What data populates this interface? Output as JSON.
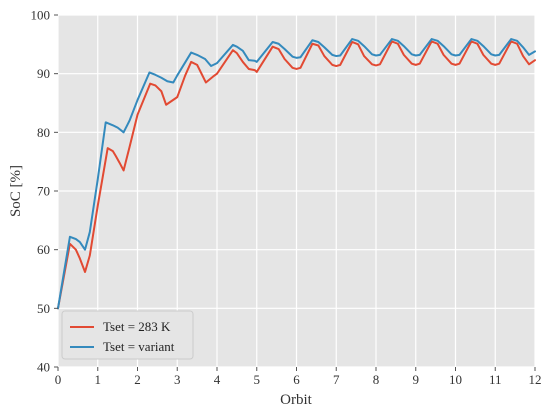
{
  "chart_data": {
    "type": "line",
    "title": "",
    "xlabel": "Orbit",
    "ylabel": "SoC [%]",
    "xlim": [
      0,
      12
    ],
    "ylim": [
      40,
      100
    ],
    "xticks": [
      0,
      1,
      2,
      3,
      4,
      5,
      6,
      7,
      8,
      9,
      10,
      11,
      12
    ],
    "yticks": [
      40,
      50,
      60,
      70,
      80,
      90,
      100
    ],
    "grid": true,
    "legend_position": "lower-left",
    "series": [
      {
        "name": "Tset = 283 K",
        "color": "#e24a33",
        "x": [
          0,
          0.3,
          0.45,
          0.55,
          0.68,
          0.8,
          1.0,
          1.25,
          1.38,
          1.45,
          1.55,
          1.65,
          1.8,
          2.0,
          2.32,
          2.45,
          2.6,
          2.72,
          3.0,
          3.2,
          3.35,
          3.5,
          3.72,
          3.9,
          4.0,
          4.4,
          4.5,
          4.65,
          4.8,
          4.95,
          5.0,
          5.4,
          5.55,
          5.7,
          5.9,
          6.0,
          6.1,
          6.4,
          6.55,
          6.7,
          6.9,
          7.0,
          7.1,
          7.4,
          7.55,
          7.7,
          7.9,
          8.0,
          8.1,
          8.4,
          8.55,
          8.7,
          8.9,
          9.0,
          9.1,
          9.4,
          9.55,
          9.7,
          9.9,
          10.0,
          10.1,
          10.4,
          10.55,
          10.7,
          10.9,
          11.0,
          11.1,
          11.4,
          11.55,
          11.7,
          11.85,
          12.0
        ],
        "y": [
          50.0,
          61.0,
          60.0,
          58.5,
          56.2,
          59.0,
          67.5,
          77.3,
          76.8,
          76.0,
          74.8,
          73.5,
          77.5,
          83.0,
          88.3,
          88.0,
          87.0,
          84.7,
          86.0,
          89.7,
          92.0,
          91.5,
          88.5,
          89.5,
          90.0,
          94.0,
          93.5,
          92.0,
          90.8,
          90.6,
          90.3,
          94.6,
          94.2,
          92.5,
          91.0,
          90.8,
          91.0,
          95.1,
          94.8,
          93.0,
          91.5,
          91.3,
          91.5,
          95.4,
          95.0,
          93.0,
          91.6,
          91.4,
          91.6,
          95.5,
          95.1,
          93.2,
          91.7,
          91.5,
          91.7,
          95.5,
          95.1,
          93.2,
          91.7,
          91.5,
          91.7,
          95.5,
          95.1,
          93.2,
          91.7,
          91.5,
          91.7,
          95.5,
          95.1,
          93.0,
          91.6,
          92.3
        ]
      },
      {
        "name": "Tset = variant",
        "color": "#348abd",
        "x": [
          0,
          0.3,
          0.45,
          0.55,
          0.68,
          0.8,
          1.0,
          1.2,
          1.38,
          1.5,
          1.65,
          1.8,
          2.0,
          2.3,
          2.45,
          2.6,
          2.75,
          2.9,
          3.0,
          3.35,
          3.5,
          3.7,
          3.85,
          4.0,
          4.4,
          4.5,
          4.65,
          4.8,
          4.95,
          5.0,
          5.4,
          5.55,
          5.7,
          5.9,
          6.0,
          6.1,
          6.4,
          6.55,
          6.7,
          6.9,
          7.0,
          7.1,
          7.4,
          7.55,
          7.7,
          7.9,
          8.0,
          8.1,
          8.4,
          8.55,
          8.7,
          8.9,
          9.0,
          9.1,
          9.4,
          9.55,
          9.7,
          9.9,
          10.0,
          10.1,
          10.4,
          10.55,
          10.7,
          10.9,
          11.0,
          11.1,
          11.4,
          11.55,
          11.7,
          11.85,
          12.0
        ],
        "y": [
          50.0,
          62.2,
          61.8,
          61.3,
          60.0,
          63.0,
          72.0,
          81.7,
          81.2,
          80.8,
          80.0,
          82.0,
          85.5,
          90.2,
          89.8,
          89.3,
          88.7,
          88.5,
          89.7,
          93.6,
          93.2,
          92.5,
          91.3,
          91.8,
          94.9,
          94.6,
          93.9,
          92.3,
          92.2,
          92.0,
          95.4,
          95.1,
          94.2,
          92.9,
          92.7,
          92.8,
          95.7,
          95.4,
          94.5,
          93.2,
          93.0,
          93.1,
          95.9,
          95.6,
          94.7,
          93.3,
          93.1,
          93.2,
          95.9,
          95.6,
          94.7,
          93.3,
          93.1,
          93.2,
          95.9,
          95.6,
          94.7,
          93.3,
          93.1,
          93.2,
          95.9,
          95.6,
          94.7,
          93.3,
          93.1,
          93.2,
          95.9,
          95.6,
          94.5,
          93.2,
          93.8
        ]
      }
    ]
  }
}
